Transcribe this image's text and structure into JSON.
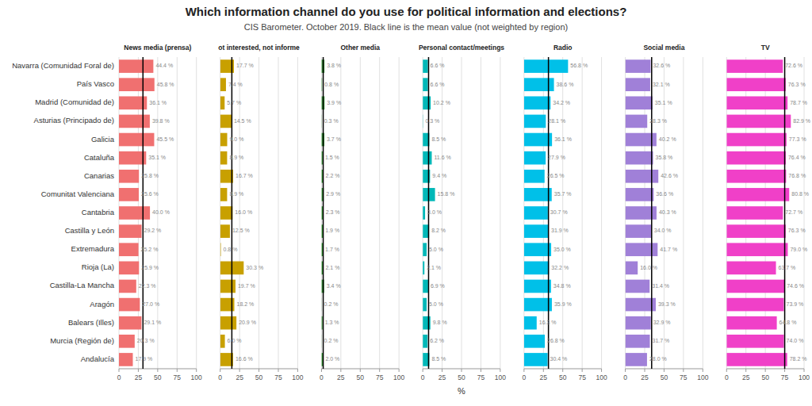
{
  "chart_data": {
    "type": "bar",
    "orientation": "horizontal",
    "title": "Which information channel do you use for political information and elections?",
    "subtitle": "CIS Barometer. October 2019. Black line is the mean value (not weighted by region)",
    "xlabel": "%",
    "categories": [
      "Navarra (Comunidad Foral de)",
      "País Vasco",
      "Madrid (Comunidad de)",
      "Asturias (Principado de)",
      "Galicia",
      "Cataluña",
      "Canarias",
      "Comunitat Valenciana",
      "Cantabria",
      "Castilla y León",
      "Extremadura",
      "Rioja (La)",
      "Castilla-La Mancha",
      "Aragón",
      "Balears (Illes)",
      "Murcia (Región de)",
      "Andalucía"
    ],
    "xlim": [
      0,
      100
    ],
    "xticks": [
      0,
      25,
      50,
      75,
      100
    ],
    "grid": true,
    "data_labels": true,
    "series": [
      {
        "name": "News media (prensa)",
        "color": "#f07070",
        "mean": 31.0,
        "values": [
          44.4,
          45.8,
          36.1,
          39.8,
          45.5,
          35.1,
          25.8,
          25.6,
          40.0,
          29.2,
          25.2,
          25.9,
          22.3,
          27.0,
          29.1,
          20.3,
          17.9
        ],
        "value_labels": [
          "44.4 %",
          "45.8 %",
          "36.1 %",
          "39.8 %",
          "45.5 %",
          "35.1 %",
          "25.8 %",
          "25.6 %",
          "40.0 %",
          "29.2 %",
          "25.2 %",
          "25.9 %",
          "22.3 %",
          "27.0 %",
          "29.1 %",
          "20.3 %",
          "17.9 %"
        ]
      },
      {
        "name": "ot interested, not informe",
        "color": "#c8a000",
        "mean": 15.0,
        "values": [
          17.7,
          7.4,
          5.7,
          14.5,
          9.0,
          8.9,
          16.7,
          8.9,
          16.0,
          12.5,
          0.8,
          30.3,
          19.7,
          18.2,
          20.9,
          6.0,
          16.6
        ],
        "value_labels": [
          "17.7 %",
          "7.4 %",
          "5.7 %",
          "14.5 %",
          "9.0 %",
          "8.9 %",
          "16.7 %",
          "8.9 %",
          "16.0 %",
          "12.5 %",
          "0.8 %",
          "30.3 %",
          "19.7 %",
          "18.2 %",
          "20.9 %",
          "6.0 %",
          "16.6 %"
        ]
      },
      {
        "name": "Other media",
        "color": "#3a9a3a",
        "mean": 2.2,
        "values": [
          3.8,
          0.8,
          3.9,
          0.3,
          3.7,
          1.5,
          2.2,
          2.9,
          2.3,
          1.9,
          1.7,
          2.1,
          3.4,
          0.2,
          1.3,
          0.2,
          2.0
        ],
        "value_labels": [
          "3.8 %",
          "0.8 %",
          "3.9 %",
          "0.3 %",
          "3.7 %",
          "1.5 %",
          "2.2 %",
          "2.9 %",
          "2.3 %",
          "1.9 %",
          "1.7 %",
          "2.1 %",
          "3.4 %",
          "0.2 %",
          "1.3 %",
          "0.2 %",
          "2.0 %"
        ]
      },
      {
        "name": "Personal contact/meetings",
        "color": "#00b8b8",
        "mean": 7.5,
        "values": [
          6.6,
          6.6,
          10.2,
          0.3,
          8.5,
          11.6,
          9.4,
          15.8,
          3.0,
          8.2,
          5.0,
          2.1,
          6.9,
          5.0,
          9.8,
          6.2,
          8.5
        ],
        "value_labels": [
          "6.6 %",
          "6.6 %",
          "10.2 %",
          "0.3 %",
          "8.5 %",
          "11.6 %",
          "9.4 %",
          "15.8 %",
          "3.0 %",
          "8.2 %",
          "5.0 %",
          "2.1 %",
          "6.9 %",
          "5.0 %",
          "9.8 %",
          "6.2 %",
          "8.5 %"
        ]
      },
      {
        "name": "Radio",
        "color": "#00c0e8",
        "mean": 31.5,
        "values": [
          56.8,
          38.6,
          34.2,
          28.1,
          36.1,
          27.9,
          26.5,
          35.7,
          30.7,
          31.9,
          35.0,
          32.2,
          34.8,
          35.9,
          16.3,
          26.8,
          30.4
        ],
        "value_labels": [
          "56.8 %",
          "38.6 %",
          "34.2 %",
          "28.1 %",
          "36.1 %",
          "27.9 %",
          "26.5 %",
          "35.7 %",
          "30.7 %",
          "31.9 %",
          "35.0 %",
          "32.2 %",
          "34.8 %",
          "35.9 %",
          "16.3 %",
          "26.8 %",
          "30.4 %"
        ]
      },
      {
        "name": "Social media",
        "color": "#a080d8",
        "mean": 34.0,
        "values": [
          32.6,
          32.1,
          35.1,
          28.3,
          40.2,
          35.8,
          42.6,
          36.6,
          40.3,
          34.0,
          41.7,
          16.0,
          31.4,
          39.3,
          32.9,
          31.7,
          28.0
        ],
        "value_labels": [
          "32.6 %",
          "32.1 %",
          "35.1 %",
          "28.3 %",
          "40.2 %",
          "35.8 %",
          "42.6 %",
          "36.6 %",
          "40.3 %",
          "34.0 %",
          "41.7 %",
          "16.0 %",
          "31.4 %",
          "39.3 %",
          "32.9 %",
          "31.7 %",
          "28.0 %"
        ]
      },
      {
        "name": "TV",
        "color": "#f040c8",
        "mean": 75.0,
        "values": [
          72.6,
          76.3,
          78.7,
          82.9,
          77.3,
          76.4,
          76.8,
          80.8,
          72.7,
          76.3,
          79.0,
          63.7,
          74.6,
          73.9,
          64.8,
          74.0,
          78.2
        ],
        "value_labels": [
          "72.6 %",
          "76.3 %",
          "78.7 %",
          "82.9 %",
          "77.3 %",
          "76.4 %",
          "76.8 %",
          "80.8 %",
          "72.7 %",
          "76.3 %",
          "79.0 %",
          "63.7 %",
          "74.6 %",
          "73.9 %",
          "64.8 %",
          "74.0 %",
          "78.2 %"
        ]
      }
    ]
  }
}
